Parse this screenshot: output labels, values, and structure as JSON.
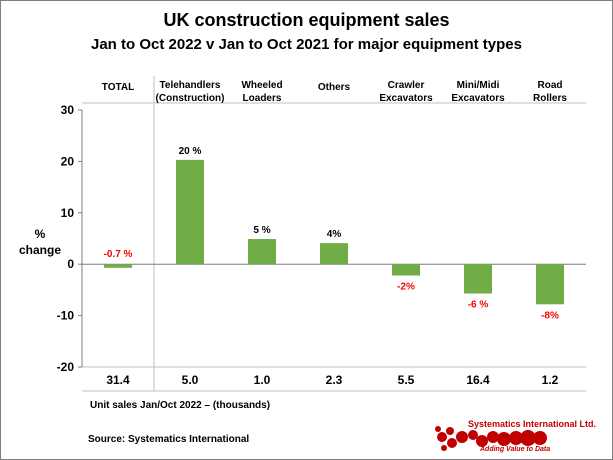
{
  "chart_data": {
    "type": "bar",
    "title": "UK construction equipment sales",
    "subtitle": "Jan to Oct 2022  v  Jan to Oct 2021 for major equipment types",
    "ylabel_line1": "%",
    "ylabel_line2": "change",
    "ylim": [
      -20,
      30
    ],
    "yticks": [
      30,
      20,
      10,
      0,
      -10,
      -20
    ],
    "categories": [
      [
        "TOTAL"
      ],
      [
        "Telehandlers",
        "(Construction)"
      ],
      [
        "Wheeled",
        "Loaders"
      ],
      [
        "Others"
      ],
      [
        "Crawler",
        "Excavators"
      ],
      [
        "Mini/Midi",
        "Excavators"
      ],
      [
        "Road",
        "Rollers"
      ]
    ],
    "values": [
      -0.7,
      20.3,
      4.9,
      4.1,
      -2.2,
      -5.7,
      -7.8
    ],
    "data_labels": [
      "-0.7 %",
      "20 %",
      "5 %",
      "4%",
      "-2%",
      "-6 %",
      "-8%"
    ],
    "unit_sales": [
      "31.4",
      "5.0",
      "1.0",
      "2.3",
      "5.5",
      "16.4",
      "1.2"
    ],
    "unit_sales_label": "Unit sales Jan/Oct 2022 –  (thousands)",
    "grid": false,
    "bar_color": "#70ad47",
    "negative_label_color": "#ff0000"
  },
  "source": "Source: Systematics International",
  "logo": {
    "name": "Systematics International Ltd.",
    "tagline": "Adding Value to Data",
    "color": "#c00000"
  }
}
